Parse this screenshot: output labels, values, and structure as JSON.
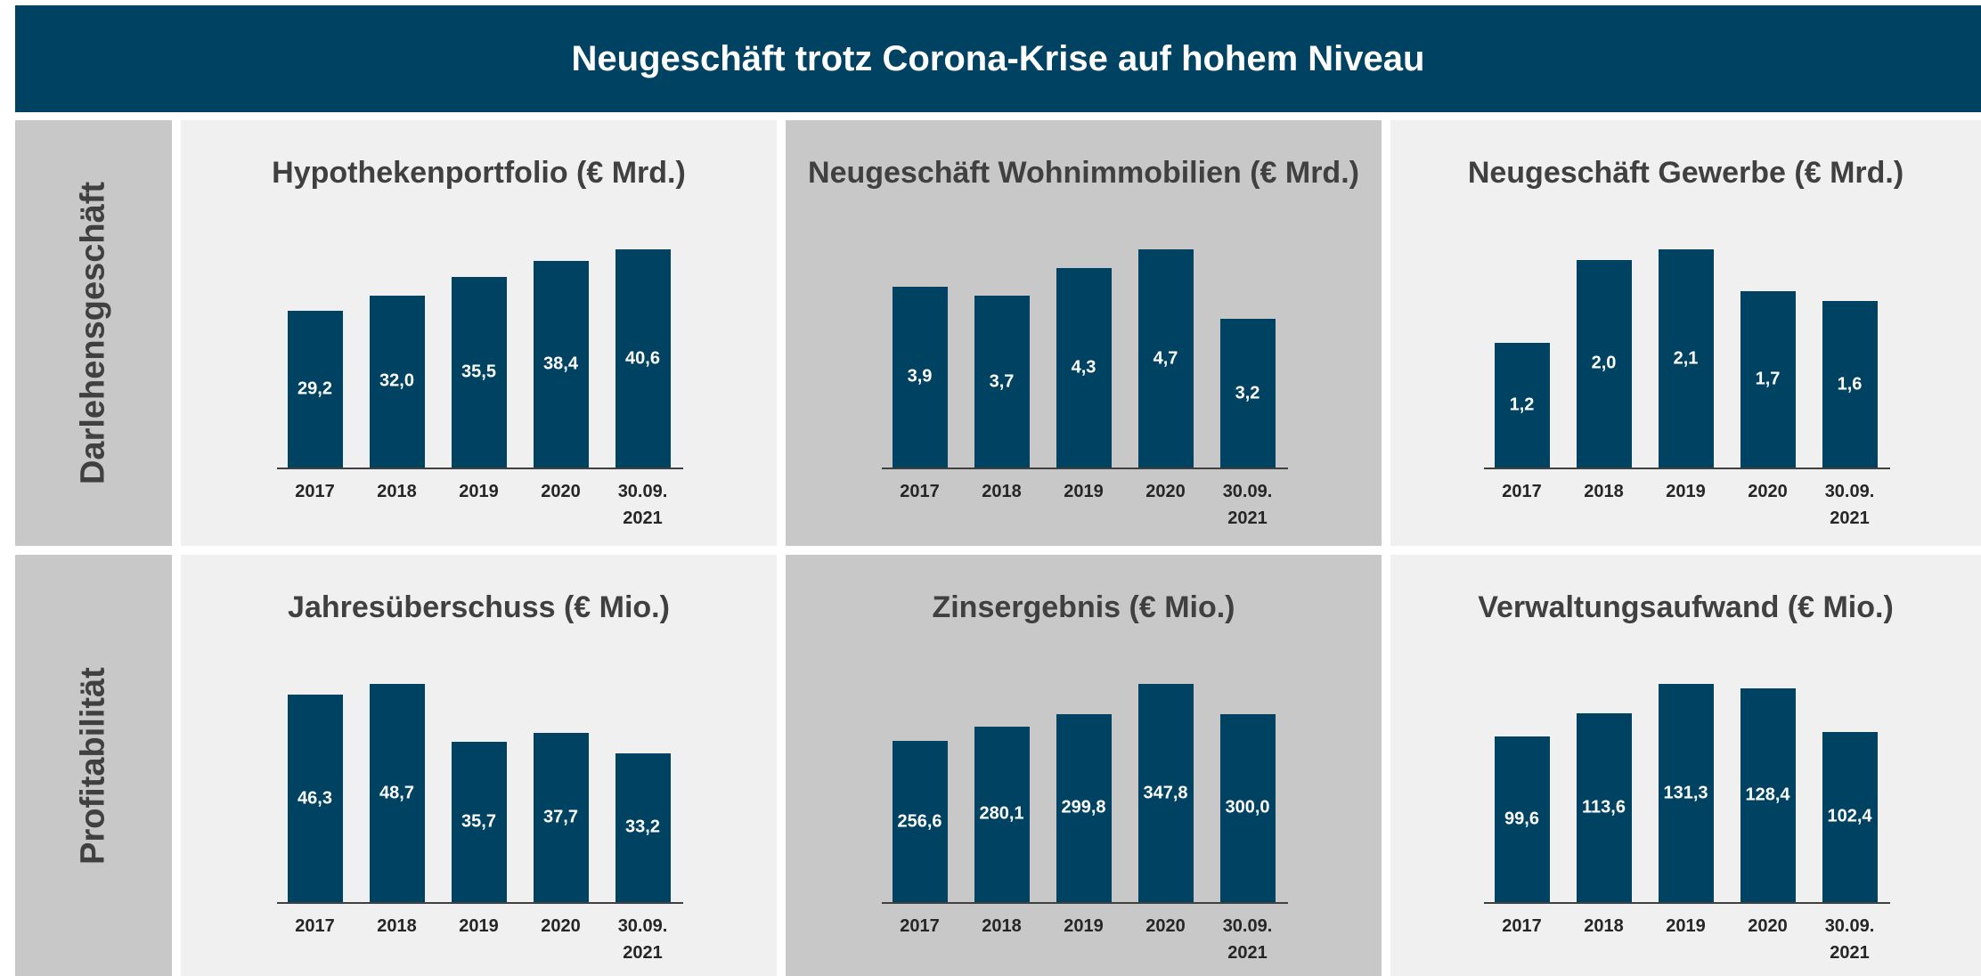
{
  "header": {
    "title": "Neugeschäft trotz Corona-Krise auf  hohem Niveau"
  },
  "rows": [
    "Darlehensgeschäft",
    "Profitabilität"
  ],
  "chart_data": [
    {
      "type": "bar",
      "title": "Hypothekenportfolio (€ Mrd.)",
      "categories": [
        "2017",
        "2018",
        "2019",
        "2020",
        "30.09. 2021"
      ],
      "values": [
        29.2,
        32.0,
        35.5,
        38.4,
        40.6
      ],
      "value_labels": [
        "29,2",
        "32,0",
        "35,5",
        "38,4",
        "40,6"
      ],
      "color": "#004261"
    },
    {
      "type": "bar",
      "title": "Neugeschäft Wohnimmobilien (€ Mrd.)",
      "categories": [
        "2017",
        "2018",
        "2019",
        "2020",
        "30.09. 2021"
      ],
      "values": [
        3.9,
        3.7,
        4.3,
        4.7,
        3.2
      ],
      "value_labels": [
        "3,9",
        "3,7",
        "4,3",
        "4,7",
        "3,2"
      ],
      "color": "#004261"
    },
    {
      "type": "bar",
      "title": "Neugeschäft Gewerbe (€ Mrd.)",
      "categories": [
        "2017",
        "2018",
        "2019",
        "2020",
        "30.09. 2021"
      ],
      "values": [
        1.2,
        2.0,
        2.1,
        1.7,
        1.6
      ],
      "value_labels": [
        "1,2",
        "2,0",
        "2,1",
        "1,7",
        "1,6"
      ],
      "color": "#004261"
    },
    {
      "type": "bar",
      "title": "Jahresüberschuss (€ Mio.)",
      "categories": [
        "2017",
        "2018",
        "2019",
        "2020",
        "30.09. 2021"
      ],
      "values": [
        46.3,
        48.7,
        35.7,
        37.7,
        33.2
      ],
      "value_labels": [
        "46,3",
        "48,7",
        "35,7",
        "37,7",
        "33,2"
      ],
      "color": "#004261"
    },
    {
      "type": "bar",
      "title": "Zinsergebnis (€ Mio.)",
      "categories": [
        "2017",
        "2018",
        "2019",
        "2020",
        "30.09. 2021"
      ],
      "values": [
        256.6,
        280.1,
        299.8,
        347.8,
        300.0
      ],
      "value_labels": [
        "256,6",
        "280,1",
        "299,8",
        "347,8",
        "300,0"
      ],
      "color": "#004261"
    },
    {
      "type": "bar",
      "title": "Verwaltungsaufwand (€ Mio.)",
      "categories": [
        "2017",
        "2018",
        "2019",
        "2020",
        "30.09. 2021"
      ],
      "values": [
        99.6,
        113.6,
        131.3,
        128.4,
        102.4
      ],
      "value_labels": [
        "99,6",
        "113,6",
        "131,3",
        "128,4",
        "102,4"
      ],
      "color": "#004261"
    }
  ]
}
